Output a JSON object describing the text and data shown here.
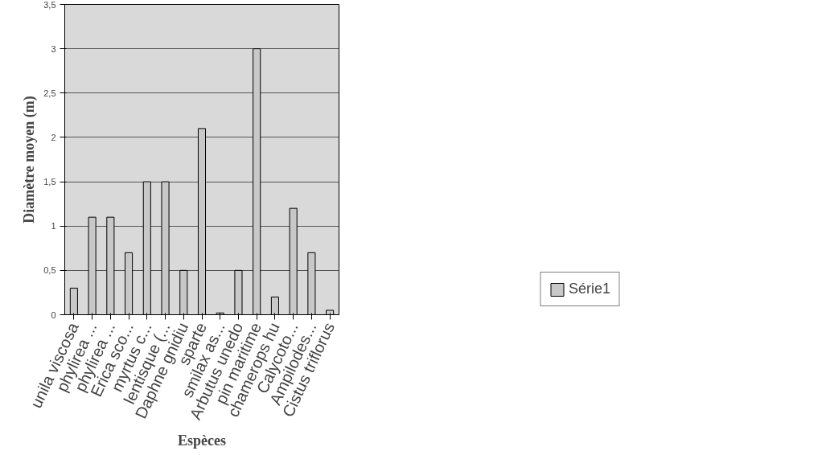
{
  "chart_data": {
    "type": "bar",
    "xlabel": "Espèces",
    "ylabel": "Diamètre moyen (m)",
    "categories": [
      "unila viscosa",
      "phylirea ...",
      "phylirea ...",
      "Erica sco...",
      "myrtus c...",
      "lentisque (...",
      "Daphne gnidiu",
      "sparte",
      "smilax as...",
      "Arbutus unedo",
      "pin maritime",
      "chamerops hu",
      "Calycoto...",
      "Ampilodes...",
      "Cistus triflorus"
    ],
    "series": [
      {
        "name": "Série1",
        "color": "#c8c8c8",
        "values": [
          0.3,
          1.1,
          1.1,
          0.7,
          1.5,
          1.5,
          0.5,
          2.1,
          0.02,
          0.5,
          3.0,
          0.2,
          1.2,
          0.7,
          0.05
        ]
      }
    ],
    "ylim": [
      0,
      3.5
    ],
    "yticks": [
      0,
      {
        "value": 0.5,
        "label": "0,5"
      },
      1,
      {
        "value": 1.5,
        "label": "1,5"
      },
      2,
      {
        "value": 2.5,
        "label": "2,5"
      },
      3,
      {
        "value": 3.5,
        "label": "3,5"
      }
    ],
    "grid": "y",
    "legend": "bottom right"
  }
}
